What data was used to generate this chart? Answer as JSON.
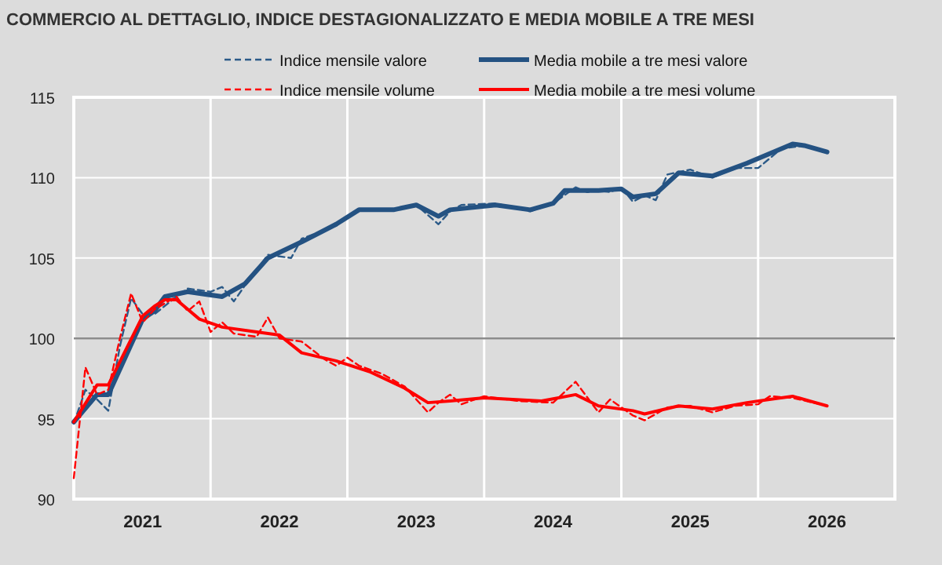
{
  "chart_data": {
    "type": "line",
    "title": "COMMERCIO AL DETTAGLIO, INDICE DESTAGIONALIZZATO E MEDIA MOBILE A TRE MESI",
    "xlim": [
      "2020-07",
      "2026-07"
    ],
    "xticks": [
      {
        "value": "2021-01",
        "label": "2021"
      },
      {
        "value": "2021-07",
        "label": null
      },
      {
        "value": "2022-01",
        "label": "2022"
      },
      {
        "value": "2022-07",
        "label": null
      },
      {
        "value": "2023-01",
        "label": "2023"
      },
      {
        "value": "2023-07",
        "label": null
      },
      {
        "value": "2024-01",
        "label": "2024"
      },
      {
        "value": "2024-07",
        "label": null
      },
      {
        "value": "2025-01",
        "label": "2025"
      },
      {
        "value": "2025-07",
        "label": null
      },
      {
        "value": "2026-01",
        "label": "2026"
      }
    ],
    "ylim": [
      90,
      115
    ],
    "yticks": [
      90,
      95,
      100,
      105,
      110,
      115
    ],
    "grid": true,
    "legend": "top",
    "ref_lines": [
      {
        "axis": "y",
        "value": 100,
        "color": "#8c8c8c"
      }
    ],
    "series": [
      {
        "name": "Indice mensile valore",
        "color": "#2b5a88",
        "line_style": "dashed",
        "x": [
          "2020-07",
          "2020-08",
          "2020-09",
          "2020-10",
          "2020-11",
          "2020-12",
          "2021-01",
          "2021-02",
          "2021-04",
          "2021-05",
          "2021-07",
          "2021-08",
          "2021-09",
          "2021-10",
          "2021-12",
          "2022-02",
          "2022-03",
          "2022-06",
          "2022-07",
          "2022-08",
          "2022-11",
          "2023-01",
          "2023-03",
          "2023-04",
          "2023-05",
          "2023-08",
          "2023-11",
          "2024-01",
          "2024-03",
          "2024-04",
          "2024-05",
          "2024-06",
          "2024-07",
          "2024-08",
          "2024-09",
          "2024-10",
          "2024-11",
          "2025-01",
          "2025-03",
          "2025-05",
          "2025-07",
          "2025-09",
          "2025-11",
          "2026-01"
        ],
        "values": [
          94.7,
          96.8,
          96.2,
          95.5,
          99.5,
          102.5,
          101.5,
          101.5,
          102.6,
          103.1,
          102.9,
          103.2,
          102.3,
          103.3,
          105.2,
          105,
          106.2,
          107,
          107.6,
          108,
          108,
          108.3,
          107.1,
          107.9,
          108.3,
          108.4,
          107.9,
          108.4,
          109.4,
          109.1,
          109.2,
          109.1,
          109.4,
          108.5,
          108.9,
          108.6,
          110.2,
          110.5,
          110,
          110.6,
          110.6,
          111.8,
          112,
          111.6
        ]
      },
      {
        "name": "Media mobile a tre mesi valore",
        "color": "#245282",
        "line_style": "solid",
        "x": [
          "2020-07",
          "2020-09",
          "2020-10",
          "2021-01",
          "2021-02",
          "2021-03",
          "2021-05",
          "2021-08",
          "2021-10",
          "2021-12",
          "2022-03",
          "2022-06",
          "2022-08",
          "2022-11",
          "2023-01",
          "2023-03",
          "2023-04",
          "2023-08",
          "2023-11",
          "2024-01",
          "2024-02",
          "2024-05",
          "2024-07",
          "2024-08",
          "2024-10",
          "2024-12",
          "2025-03",
          "2025-06",
          "2025-10",
          "2025-11",
          "2026-01"
        ],
        "values": [
          94.8,
          96.5,
          96.5,
          101.2,
          101.7,
          102.6,
          102.9,
          102.6,
          103.4,
          105,
          106,
          107.1,
          108,
          108,
          108.3,
          107.6,
          108,
          108.3,
          108,
          108.4,
          109.2,
          109.2,
          109.3,
          108.8,
          109,
          110.3,
          110.1,
          110.9,
          112.1,
          112,
          111.6
        ]
      },
      {
        "name": "Indice mensile volume",
        "color": "#ff0000",
        "line_style": "dashed",
        "x": [
          "2020-07",
          "2020-08",
          "2020-09",
          "2020-10",
          "2020-11",
          "2020-12",
          "2021-01",
          "2021-02",
          "2021-04",
          "2021-05",
          "2021-06",
          "2021-07",
          "2021-08",
          "2021-09",
          "2021-11",
          "2021-12",
          "2022-01",
          "2022-03",
          "2022-05",
          "2022-06",
          "2022-07",
          "2022-08",
          "2022-10",
          "2022-12",
          "2023-02",
          "2023-03",
          "2023-04",
          "2023-05",
          "2023-07",
          "2023-10",
          "2024-01",
          "2024-03",
          "2024-05",
          "2024-06",
          "2024-08",
          "2024-09",
          "2024-11",
          "2025-01",
          "2025-03",
          "2025-05",
          "2025-07",
          "2025-08",
          "2025-10",
          "2026-01"
        ],
        "values": [
          91.3,
          98.2,
          96.5,
          96.8,
          100,
          102.8,
          101,
          101.8,
          102.6,
          101.7,
          102.3,
          100.4,
          101,
          100.3,
          100.1,
          101.3,
          100,
          99.8,
          98.7,
          98.3,
          98.8,
          98.3,
          97.8,
          97,
          95.4,
          96,
          96.5,
          95.9,
          96.4,
          96.1,
          96,
          97.3,
          95.4,
          96.2,
          95.2,
          94.9,
          95.7,
          95.8,
          95.4,
          95.8,
          95.9,
          96.4,
          96.3,
          95.8
        ]
      },
      {
        "name": "Media mobile a tre mesi volume",
        "color": "#ff0000",
        "line_style": "solid",
        "x": [
          "2020-07",
          "2020-09",
          "2020-10",
          "2021-01",
          "2021-02",
          "2021-03",
          "2021-04",
          "2021-06",
          "2021-08",
          "2021-11",
          "2022-01",
          "2022-03",
          "2022-06",
          "2022-09",
          "2022-12",
          "2023-02",
          "2023-04",
          "2023-07",
          "2023-12",
          "2024-03",
          "2024-05",
          "2024-08",
          "2024-09",
          "2024-12",
          "2025-03",
          "2025-06",
          "2025-10",
          "2026-01"
        ],
        "values": [
          94.8,
          97.1,
          97.1,
          101.4,
          102,
          102.4,
          102.4,
          101.2,
          100.7,
          100.4,
          100.2,
          99.1,
          98.6,
          97.9,
          96.9,
          96,
          96.1,
          96.3,
          96.1,
          96.5,
          95.8,
          95.5,
          95.3,
          95.8,
          95.6,
          96,
          96.4,
          95.8
        ]
      }
    ]
  }
}
